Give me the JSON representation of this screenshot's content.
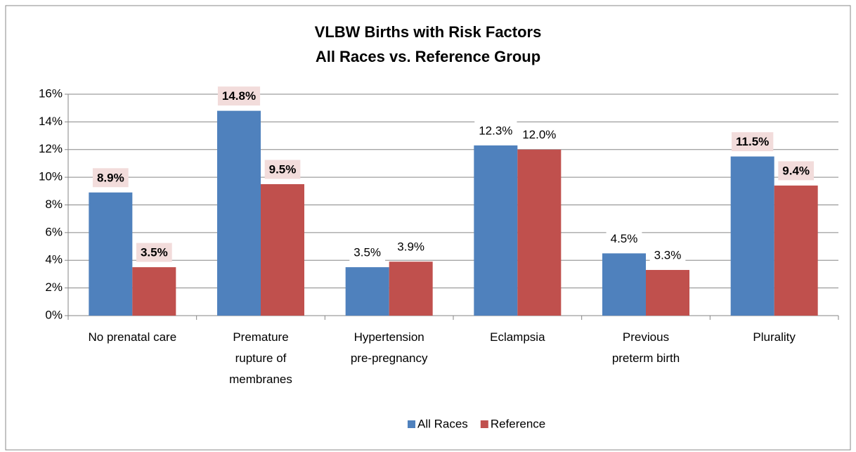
{
  "chart_data": {
    "type": "bar",
    "title": [
      "VLBW Births with Risk Factors",
      "All Races vs. Reference Group"
    ],
    "categories": [
      "No prenatal care",
      "Premature\nrupture of\nmembranes",
      "Hypertension\npre-pregnancy",
      "Eclampsia",
      "Previous\npreterm birth",
      "Plurality"
    ],
    "series": [
      {
        "name": "All Races",
        "color": "#4f81bd",
        "values": [
          8.9,
          14.8,
          3.5,
          12.3,
          4.5,
          11.5
        ],
        "value_labels": [
          "8.9%",
          "14.8%",
          "3.5%",
          "12.3%",
          "4.5%",
          "11.5%"
        ],
        "highlighted": [
          true,
          true,
          false,
          false,
          false,
          true
        ]
      },
      {
        "name": "Reference",
        "color": "#c0504d",
        "values": [
          3.5,
          9.5,
          3.9,
          12.0,
          3.3,
          9.4
        ],
        "value_labels": [
          "3.5%",
          "9.5%",
          "3.9%",
          "12.0%",
          "3.3%",
          "9.4%"
        ],
        "highlighted": [
          true,
          true,
          false,
          false,
          false,
          true
        ]
      }
    ],
    "ylim": [
      0,
      16
    ],
    "yticks": [
      {
        "value": 0,
        "label": "0%"
      },
      {
        "value": 2,
        "label": "2%"
      },
      {
        "value": 4,
        "label": "4%"
      },
      {
        "value": 6,
        "label": "6%"
      },
      {
        "value": 8,
        "label": "8%"
      },
      {
        "value": 10,
        "label": "10%"
      },
      {
        "value": 12,
        "label": "12%"
      },
      {
        "value": 14,
        "label": "14%"
      },
      {
        "value": 16,
        "label": "16%"
      }
    ],
    "grid": true,
    "legend": "bottom"
  }
}
